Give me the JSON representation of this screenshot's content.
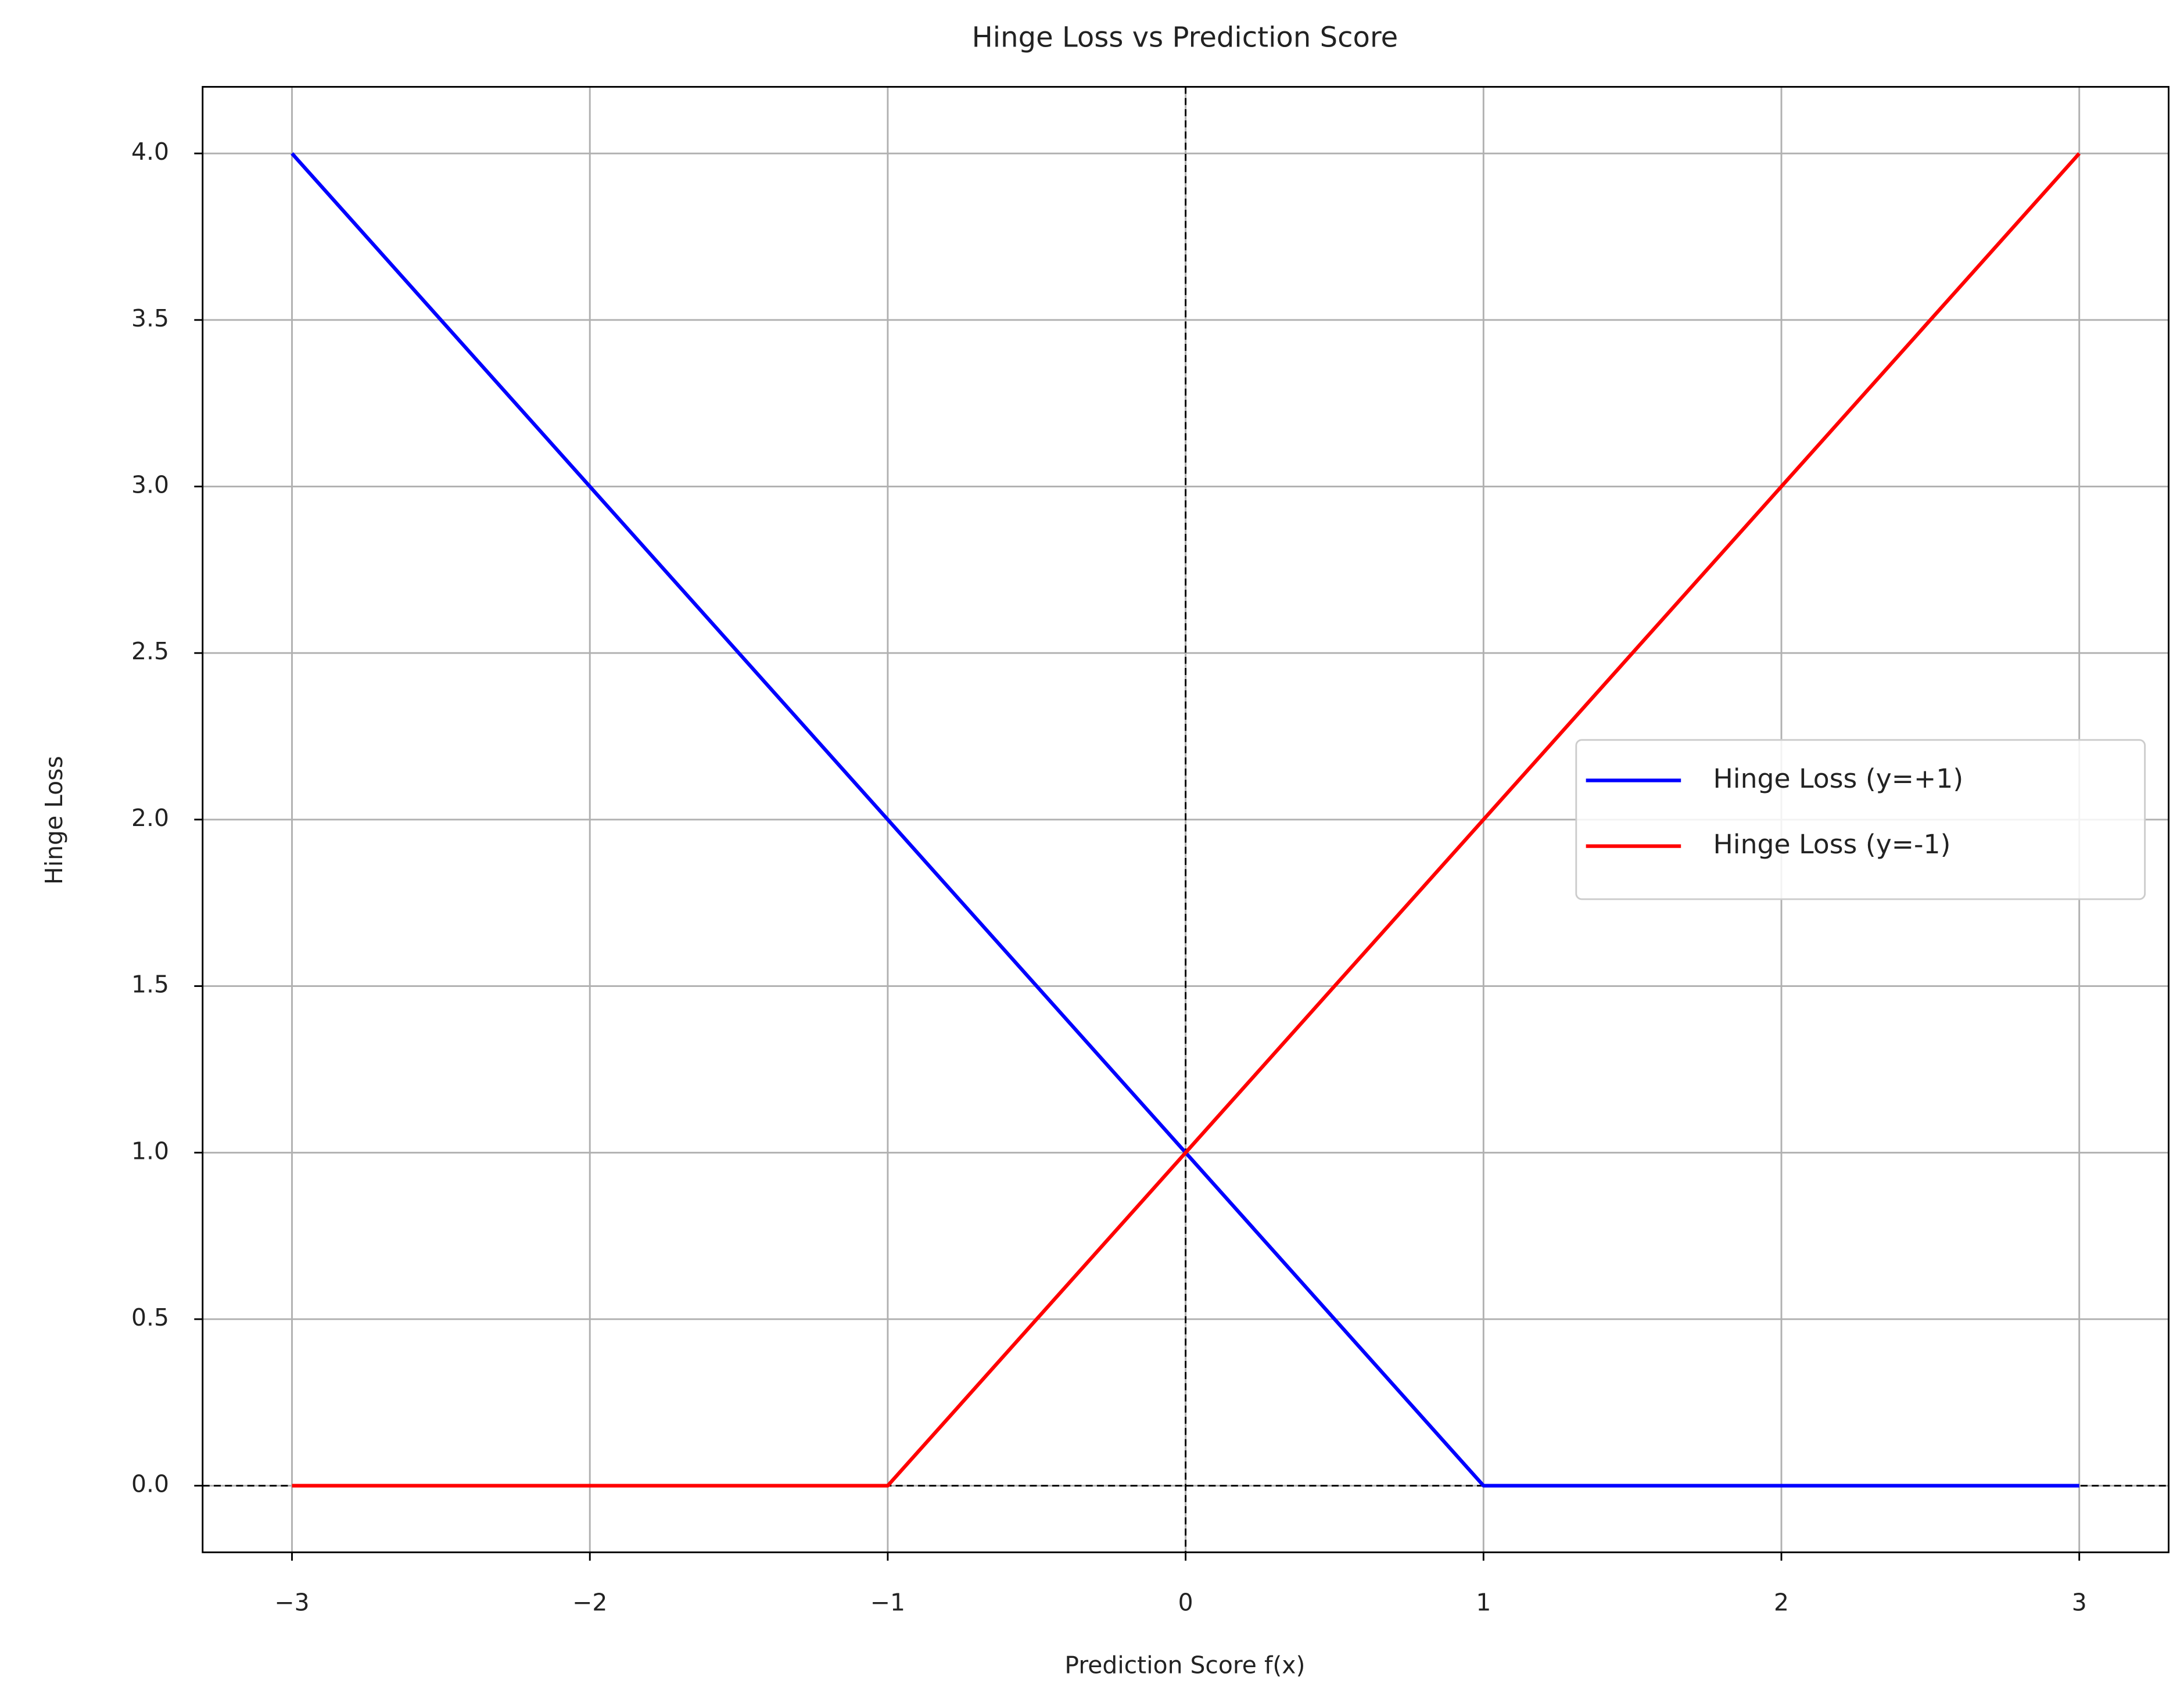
{
  "chart_data": {
    "type": "line",
    "title": "Hinge Loss vs Prediction Score",
    "x_label": "Prediction Score f(x)",
    "y_label": "Hinge Loss",
    "x": [
      -3,
      -2,
      -1,
      0,
      1,
      2,
      3
    ],
    "series": [
      {
        "name": "Hinge Loss (y=+1)",
        "color": "#0000ff",
        "values": [
          4,
          3,
          2,
          1,
          0,
          0,
          0
        ]
      },
      {
        "name": "Hinge Loss (y=-1)",
        "color": "#ff0000",
        "values": [
          0,
          0,
          0,
          1,
          2,
          3,
          4
        ]
      }
    ],
    "xlim": [
      -3.3,
      3.3
    ],
    "ylim": [
      -0.2,
      4.2
    ],
    "xticks": [
      {
        "value": -3,
        "label": "−3"
      },
      {
        "value": -2,
        "label": "−2"
      },
      {
        "value": -1,
        "label": "−1"
      },
      0,
      1,
      2,
      3
    ],
    "yticks": [
      {
        "value": 0,
        "label": "0.0"
      },
      {
        "value": 0.5,
        "label": "0.5"
      },
      {
        "value": 1,
        "label": "1.0"
      },
      {
        "value": 1.5,
        "label": "1.5"
      },
      {
        "value": 2,
        "label": "2.0"
      },
      {
        "value": 2.5,
        "label": "2.5"
      },
      {
        "value": 3,
        "label": "3.0"
      },
      {
        "value": 3.5,
        "label": "3.5"
      },
      {
        "value": 4,
        "label": "4.0"
      }
    ],
    "reference_lines": {
      "x": 0,
      "y": 0
    },
    "grid": true,
    "legend": "center right"
  }
}
